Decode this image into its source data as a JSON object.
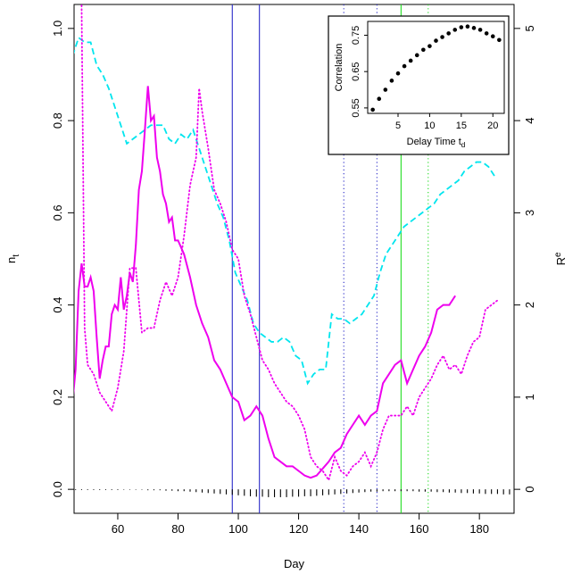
{
  "chart_data": [
    {
      "type": "line",
      "x_label": "Day",
      "y_label": "n",
      "y_label_sub": "t",
      "y2_label": "R",
      "y2_label_sup": "e",
      "xlim": [
        45.5,
        191.5
      ],
      "ylim": [
        -0.052,
        1.052
      ],
      "y2lim": [
        -0.26,
        5.26
      ],
      "xticks": [
        60,
        80,
        100,
        120,
        140,
        160,
        180
      ],
      "yticks": [
        {
          "value": 0,
          "label": "0.0"
        },
        0.2,
        0.4,
        0.6,
        0.8,
        {
          "value": 1,
          "label": "1.0"
        }
      ],
      "y2ticks": [
        0,
        1,
        2,
        3,
        4,
        5
      ],
      "vlines": [
        {
          "x": 98,
          "color": "#2b2bc8",
          "style": "solid"
        },
        {
          "x": 107,
          "color": "#2b2bc8",
          "style": "solid"
        },
        {
          "x": 135,
          "color": "#2b2bc8",
          "style": "dotted"
        },
        {
          "x": 146,
          "color": "#2b2bc8",
          "style": "dotted"
        },
        {
          "x": 154,
          "color": "#22dd22",
          "style": "solid"
        },
        {
          "x": 163,
          "color": "#22dd22",
          "style": "dotted"
        }
      ],
      "series": [
        {
          "color": "#00e5ee",
          "style": "dashed",
          "x": [
            45,
            47,
            49,
            51,
            53,
            55,
            57,
            59,
            61,
            63,
            65,
            67,
            69,
            71,
            73,
            75,
            77,
            79,
            81,
            83,
            85,
            87,
            89,
            91,
            93,
            95,
            97,
            99,
            101,
            103,
            105,
            107,
            109,
            111,
            113,
            115,
            117,
            119,
            121,
            123,
            125,
            127,
            129,
            131,
            133,
            135,
            137,
            139,
            141,
            143,
            145,
            147,
            149,
            151,
            153,
            155,
            157,
            159,
            161,
            163,
            165,
            167,
            169,
            171,
            173,
            175,
            177,
            179,
            181,
            183,
            185
          ],
          "values": [
            0.94,
            0.98,
            0.97,
            0.97,
            0.92,
            0.9,
            0.87,
            0.83,
            0.79,
            0.75,
            0.76,
            0.77,
            0.78,
            0.79,
            0.79,
            0.79,
            0.76,
            0.75,
            0.77,
            0.76,
            0.78,
            0.74,
            0.7,
            0.66,
            0.62,
            0.59,
            0.54,
            0.47,
            0.44,
            0.41,
            0.36,
            0.34,
            0.33,
            0.32,
            0.32,
            0.33,
            0.32,
            0.29,
            0.28,
            0.23,
            0.25,
            0.26,
            0.26,
            0.38,
            0.37,
            0.37,
            0.36,
            0.37,
            0.38,
            0.4,
            0.42,
            0.47,
            0.51,
            0.53,
            0.55,
            0.57,
            0.58,
            0.59,
            0.6,
            0.61,
            0.62,
            0.64,
            0.65,
            0.66,
            0.67,
            0.69,
            0.7,
            0.71,
            0.71,
            0.7,
            0.68
          ]
        },
        {
          "color": "#ee00ee",
          "style": "dotted",
          "x": [
            48,
            49,
            50,
            52,
            54,
            56,
            58,
            60,
            62,
            64,
            66,
            68,
            70,
            72,
            74,
            76,
            78,
            80,
            82,
            84,
            86,
            87,
            88,
            90,
            92,
            94,
            96,
            98,
            100,
            102,
            104,
            106,
            108,
            110,
            112,
            114,
            116,
            118,
            120,
            122,
            124,
            126,
            128,
            130,
            132,
            134,
            136,
            138,
            140,
            142,
            144,
            146,
            148,
            150,
            152,
            154,
            156,
            158,
            160,
            162,
            164,
            166,
            168,
            170,
            172,
            174,
            176,
            178,
            180,
            182,
            184,
            186
          ],
          "values": [
            1.05,
            0.35,
            0.27,
            0.25,
            0.21,
            0.19,
            0.17,
            0.22,
            0.3,
            0.48,
            0.48,
            0.34,
            0.35,
            0.35,
            0.41,
            0.45,
            0.42,
            0.46,
            0.55,
            0.66,
            0.72,
            0.87,
            0.82,
            0.74,
            0.65,
            0.62,
            0.58,
            0.52,
            0.5,
            0.42,
            0.38,
            0.33,
            0.28,
            0.26,
            0.23,
            0.21,
            0.19,
            0.18,
            0.16,
            0.13,
            0.07,
            0.05,
            0.04,
            0.02,
            0.07,
            0.04,
            0.03,
            0.05,
            0.06,
            0.08,
            0.05,
            0.08,
            0.13,
            0.16,
            0.16,
            0.16,
            0.18,
            0.16,
            0.2,
            0.22,
            0.24,
            0.27,
            0.29,
            0.26,
            0.27,
            0.25,
            0.29,
            0.32,
            0.33,
            0.39,
            0.4,
            0.41
          ]
        },
        {
          "color": "#ee00ee",
          "style": "solid",
          "x": [
            45,
            46,
            47,
            48,
            49,
            50,
            51,
            52,
            53,
            54,
            55,
            56,
            57,
            58,
            59,
            60,
            61,
            62,
            63,
            64,
            65,
            66,
            67,
            68,
            69,
            70,
            71,
            72,
            73,
            74,
            75,
            76,
            77,
            78,
            79,
            80,
            82,
            84,
            86,
            88,
            90,
            92,
            94,
            96,
            98,
            100,
            102,
            104,
            106,
            108,
            110,
            112,
            114,
            116,
            118,
            120,
            122,
            124,
            126,
            128,
            130,
            132,
            134,
            136,
            138,
            140,
            142,
            144,
            146,
            148,
            150,
            152,
            154,
            156,
            158,
            160,
            162,
            164,
            166,
            168,
            170,
            172
          ],
          "values": [
            0.19,
            0.26,
            0.43,
            0.49,
            0.44,
            0.44,
            0.46,
            0.43,
            0.33,
            0.24,
            0.28,
            0.31,
            0.31,
            0.38,
            0.4,
            0.39,
            0.46,
            0.39,
            0.42,
            0.47,
            0.45,
            0.53,
            0.65,
            0.69,
            0.78,
            0.875,
            0.8,
            0.81,
            0.72,
            0.69,
            0.64,
            0.62,
            0.58,
            0.59,
            0.54,
            0.54,
            0.51,
            0.46,
            0.4,
            0.36,
            0.33,
            0.28,
            0.26,
            0.23,
            0.2,
            0.19,
            0.15,
            0.16,
            0.18,
            0.16,
            0.11,
            0.07,
            0.06,
            0.05,
            0.05,
            0.04,
            0.03,
            0.025,
            0.03,
            0.045,
            0.06,
            0.08,
            0.09,
            0.12,
            0.14,
            0.16,
            0.14,
            0.16,
            0.17,
            0.23,
            0.25,
            0.27,
            0.28,
            0.23,
            0.26,
            0.29,
            0.31,
            0.34,
            0.39,
            0.4,
            0.4,
            0.42
          ]
        },
        {
          "color": "#000000",
          "style": "spikes",
          "x": [
            46,
            48,
            50,
            52,
            54,
            56,
            58,
            60,
            62,
            64,
            66,
            68,
            70,
            72,
            74,
            76,
            78,
            80,
            82,
            84,
            86,
            88,
            90,
            92,
            94,
            96,
            98,
            100,
            102,
            104,
            106,
            108,
            110,
            112,
            114,
            116,
            118,
            120,
            122,
            124,
            126,
            128,
            130,
            132,
            134,
            136,
            138,
            140,
            142,
            144,
            146,
            148,
            150,
            152,
            154,
            156,
            158,
            160,
            162,
            164,
            166,
            168,
            170,
            172,
            174,
            176,
            178,
            180,
            182,
            184,
            186,
            188,
            190
          ],
          "values": [
            0,
            0,
            0,
            0,
            0,
            0,
            0,
            0,
            -0.001,
            -0.001,
            -0.001,
            -0.001,
            -0.002,
            -0.002,
            -0.002,
            -0.003,
            -0.003,
            -0.004,
            -0.004,
            -0.005,
            -0.006,
            -0.007,
            -0.008,
            -0.009,
            -0.01,
            -0.011,
            -0.012,
            -0.013,
            -0.014,
            -0.015,
            -0.016,
            -0.016,
            -0.017,
            -0.017,
            -0.017,
            -0.017,
            -0.016,
            -0.016,
            -0.015,
            -0.015,
            -0.014,
            -0.013,
            -0.012,
            -0.011,
            -0.01,
            -0.009,
            -0.008,
            -0.007,
            -0.006,
            -0.005,
            -0.005,
            -0.004,
            -0.004,
            -0.004,
            -0.004,
            -0.004,
            -0.004,
            -0.005,
            -0.005,
            -0.005,
            -0.006,
            -0.006,
            -0.007,
            -0.007,
            -0.008,
            -0.008,
            -0.009,
            -0.009,
            -0.01,
            -0.01,
            -0.01,
            -0.011,
            -0.011
          ]
        }
      ]
    },
    {
      "type": "scatter",
      "x_label": "Delay Time t",
      "x_label_sub": "d",
      "y_label": "Correlation",
      "xlim": [
        0.2,
        21.8
      ],
      "ylim": [
        0.535,
        0.788
      ],
      "xticks": [
        5,
        10,
        15,
        20
      ],
      "yticks": [
        0.55,
        0.65,
        0.75
      ],
      "color": "#000000",
      "x": [
        1,
        2,
        3,
        4,
        5,
        6,
        7,
        8,
        9,
        10,
        11,
        12,
        13,
        14,
        15,
        16,
        17,
        18,
        19,
        20,
        21
      ],
      "values": [
        0.545,
        0.575,
        0.6,
        0.625,
        0.645,
        0.665,
        0.68,
        0.695,
        0.71,
        0.72,
        0.735,
        0.745,
        0.755,
        0.765,
        0.772,
        0.774,
        0.77,
        0.765,
        0.755,
        0.747,
        0.737
      ]
    }
  ]
}
